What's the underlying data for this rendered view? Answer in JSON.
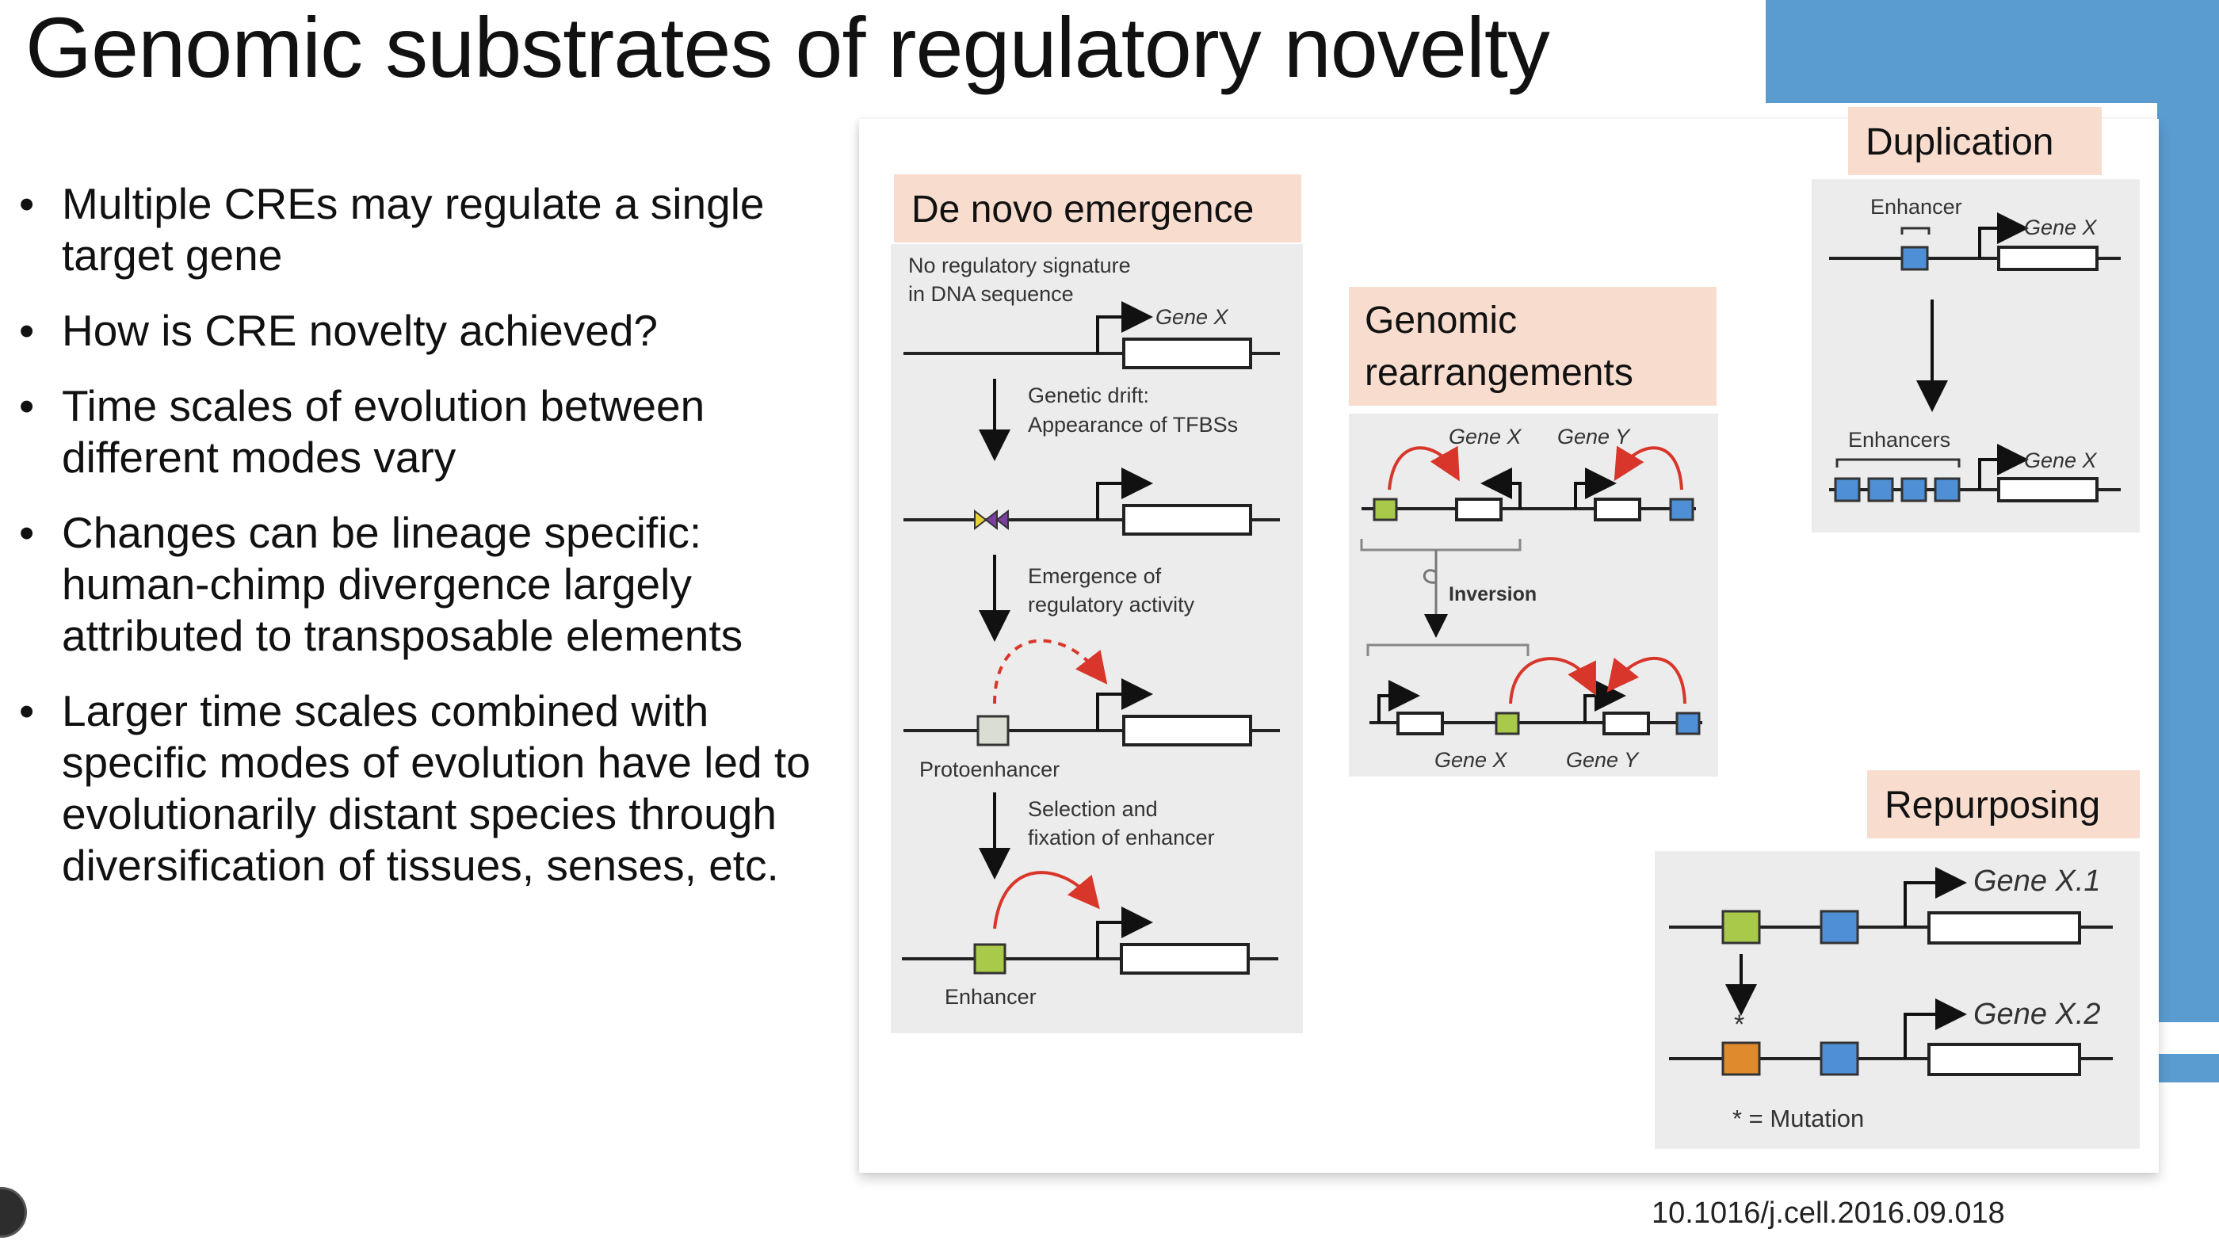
{
  "slide": {
    "title": "Genomic substrates of regulatory novelty",
    "bullets": [
      "Multiple CREs may regulate a single target gene",
      "How is CRE novelty achieved?",
      "Time scales of evolution between different modes vary",
      "Changes can be lineage specific: human-chimp divergence largely attributed to transposable elements",
      "Larger time scales combined with specific modes of evolution have led to evolutionarily distant species through diversification of tissues, senses, etc."
    ],
    "citation": "10.1016/j.cell.2016.09.018"
  },
  "figure": {
    "denovo": {
      "title": "De novo emergence",
      "no_signature_1": "No regulatory signature",
      "no_signature_2": "in DNA sequence",
      "gene": "Gene X",
      "step1_1": "Genetic drift:",
      "step1_2": "Appearance of TFBSs",
      "step2_1": "Emergence of",
      "step2_2": "regulatory activity",
      "protoenhancer": "Protoenhancer",
      "step3_1": "Selection and",
      "step3_2": "fixation of enhancer",
      "enhancer": "Enhancer"
    },
    "rearrangements": {
      "title_1": "Genomic",
      "title_2": "rearrangements",
      "gene_x": "Gene X",
      "gene_y": "Gene Y",
      "inversion": "Inversion"
    },
    "duplication": {
      "title": "Duplication",
      "enhancer": "Enhancer",
      "enhancers": "Enhancers",
      "gene": "Gene X"
    },
    "repurposing": {
      "title": "Repurposing",
      "gene_1": "Gene X.1",
      "gene_2": "Gene X.2",
      "star": "*",
      "mutation_legend": "* = Mutation"
    },
    "colors": {
      "header_bg": "#f8ddcf",
      "panel_bg": "#ececec",
      "enhancer_green": "#a8c94a",
      "protoenhancer_grey": "#d9ddd2",
      "tfbs_yellow": "#e7d23a",
      "tfbs_purple": "#7b3fa0",
      "site_blue": "#4f8fd6",
      "mutant_orange": "#e08a2e",
      "interaction_red": "#d9362b",
      "slide_accent_blue": "#5a9bd0"
    }
  }
}
